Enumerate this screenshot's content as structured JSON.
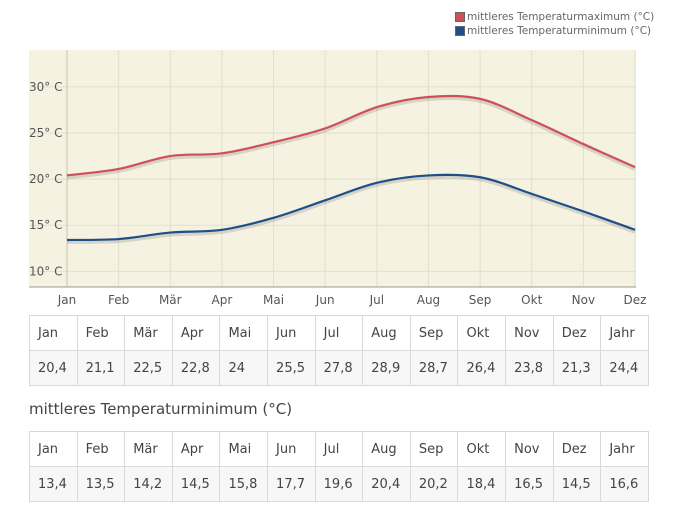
{
  "chart_data": {
    "type": "line",
    "categories": [
      "Jan",
      "Feb",
      "Mär",
      "Apr",
      "Mai",
      "Jun",
      "Jul",
      "Aug",
      "Sep",
      "Okt",
      "Nov",
      "Dez"
    ],
    "series": [
      {
        "name": "mittleres Temperaturmaximum (°C)",
        "color": "#d0505a",
        "values": [
          20.4,
          21.1,
          22.5,
          22.8,
          24,
          25.5,
          27.8,
          28.9,
          28.7,
          26.4,
          23.8,
          21.3
        ]
      },
      {
        "name": "mittleres Temperaturminimum (°C)",
        "color": "#1f4f8a",
        "values": [
          13.4,
          13.5,
          14.2,
          14.5,
          15.8,
          17.7,
          19.6,
          20.4,
          20.2,
          18.4,
          16.5,
          14.5
        ]
      }
    ],
    "yticks": [
      "10° C",
      "15° C",
      "20° C",
      "25° C",
      "30° C"
    ],
    "ytick_values": [
      10,
      15,
      20,
      25,
      30
    ],
    "ylim": [
      8.3,
      34
    ],
    "grid": true,
    "legend": "top-right",
    "background": "#f5f2e1"
  },
  "legend": {
    "items": [
      {
        "label": "mittleres Temperaturmaximum (°C)",
        "color": "#d0505a"
      },
      {
        "label": "mittleres Temperaturminimum (°C)",
        "color": "#1f4f8a"
      }
    ]
  },
  "table_max": {
    "headers": [
      "Jan",
      "Feb",
      "Mär",
      "Apr",
      "Mai",
      "Jun",
      "Jul",
      "Aug",
      "Sep",
      "Okt",
      "Nov",
      "Dez",
      "Jahr"
    ],
    "values": [
      "20,4",
      "21,1",
      "22,5",
      "22,8",
      "24",
      "25,5",
      "27,8",
      "28,9",
      "28,7",
      "26,4",
      "23,8",
      "21,3",
      "24,4"
    ]
  },
  "subtitle": "mittleres Temperaturminimum (°C)",
  "table_min": {
    "headers": [
      "Jan",
      "Feb",
      "Mär",
      "Apr",
      "Mai",
      "Jun",
      "Jul",
      "Aug",
      "Sep",
      "Okt",
      "Nov",
      "Dez",
      "Jahr"
    ],
    "values": [
      "13,4",
      "13,5",
      "14,2",
      "14,5",
      "15,8",
      "17,7",
      "19,6",
      "20,4",
      "20,2",
      "18,4",
      "16,5",
      "14,5",
      "16,6"
    ]
  }
}
